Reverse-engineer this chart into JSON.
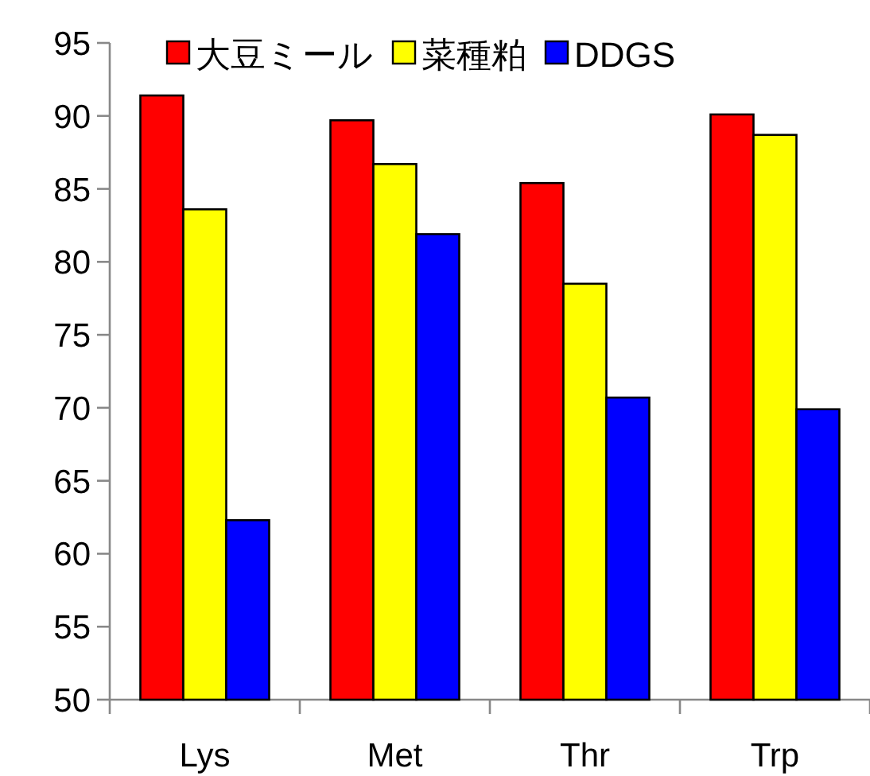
{
  "chart_data": {
    "type": "bar",
    "categories": [
      "Lys",
      "Met",
      "Thr",
      "Trp"
    ],
    "series": [
      {
        "name": "大豆ミール",
        "color": "#ff0000",
        "values": [
          91.4,
          89.7,
          85.4,
          90.1
        ]
      },
      {
        "name": "菜種粕",
        "color": "#ffff00",
        "values": [
          83.6,
          86.7,
          78.5,
          88.7
        ]
      },
      {
        "name": "DDGS",
        "color": "#0000ff",
        "values": [
          62.3,
          81.9,
          70.7,
          69.9
        ]
      }
    ],
    "ylim": [
      50,
      95
    ],
    "yticks": [
      50,
      55,
      60,
      65,
      70,
      75,
      80,
      85,
      90,
      95
    ],
    "legend": "top",
    "grid": false
  }
}
